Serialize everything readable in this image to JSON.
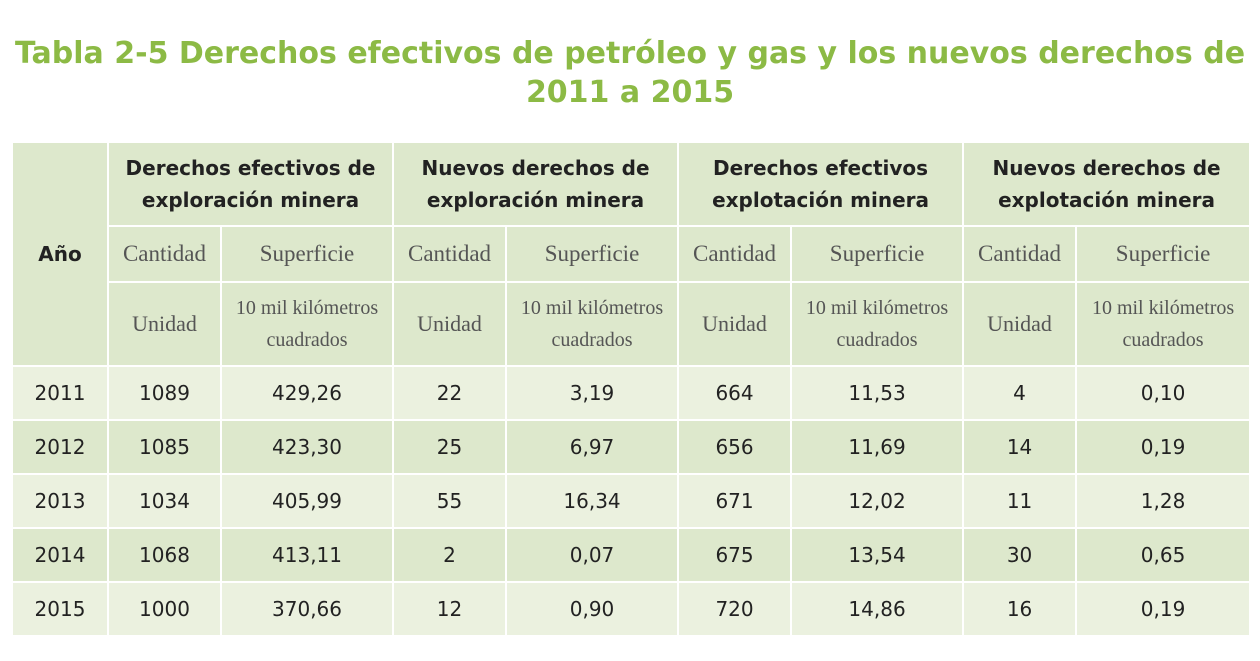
{
  "title": {
    "line1": "Tabla 2-5 Derechos efectivos de petróleo y gas y los nuevos derechos de",
    "line2": "2011 a 2015"
  },
  "colors": {
    "title": "#8cba45",
    "header_bg": "#dde8cc",
    "row_dark": "#dde8cc",
    "row_light": "#ebf1df"
  },
  "table": {
    "year_header": "Año",
    "groups": [
      {
        "line1": "Derechos efectivos de",
        "line2": "exploración minera"
      },
      {
        "line1": "Nuevos derechos de",
        "line2": "exploración minera"
      },
      {
        "line1": "Derechos efectivos",
        "line2": "explotación minera"
      },
      {
        "line1": "Nuevos derechos de",
        "line2": "explotación minera"
      }
    ],
    "sub_headers": {
      "quantity": "Cantidad",
      "surface": "Superficie"
    },
    "units": {
      "quantity": "Unidad",
      "surface_line1": "10 mil kilómetros",
      "surface_line2": "cuadrados"
    },
    "rows": [
      {
        "year": "2011",
        "values": [
          "1089",
          "429,26",
          "22",
          "3,19",
          "664",
          "11,53",
          "4",
          "0,10"
        ]
      },
      {
        "year": "2012",
        "values": [
          "1085",
          "423,30",
          "25",
          "6,97",
          "656",
          "11,69",
          "14",
          "0,19"
        ]
      },
      {
        "year": "2013",
        "values": [
          "1034",
          "405,99",
          "55",
          "16,34",
          "671",
          "12,02",
          "11",
          "1,28"
        ]
      },
      {
        "year": "2014",
        "values": [
          "1068",
          "413,11",
          "2",
          "0,07",
          "675",
          "13,54",
          "30",
          "0,65"
        ]
      },
      {
        "year": "2015",
        "values": [
          "1000",
          "370,66",
          "12",
          "0,90",
          "720",
          "14,86",
          "16",
          "0,19"
        ]
      }
    ]
  }
}
